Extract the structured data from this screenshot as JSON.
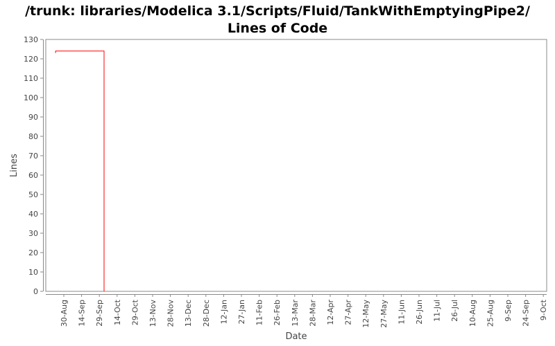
{
  "chart_data": {
    "type": "line",
    "title": "/trunk: libraries/Modelica 3.1/Scripts/Fluid/TankWithEmptyingPipe2/",
    "subtitle": "Lines of Code",
    "xlabel": "Date",
    "ylabel": "Lines",
    "ylim": [
      0,
      130
    ],
    "yticks": [
      0,
      10,
      20,
      30,
      40,
      50,
      60,
      70,
      80,
      90,
      100,
      110,
      120,
      130
    ],
    "xticks": [
      "30-Aug",
      "14-Sep",
      "29-Sep",
      "14-Oct",
      "29-Oct",
      "13-Nov",
      "28-Nov",
      "13-Dec",
      "28-Dec",
      "12-Jan",
      "27-Jan",
      "11-Feb",
      "26-Feb",
      "13-Mar",
      "28-Mar",
      "12-Apr",
      "27-Apr",
      "12-May",
      "27-May",
      "11-Jun",
      "26-Jun",
      "11-Jul",
      "26-Jul",
      "10-Aug",
      "25-Aug",
      "9-Sep",
      "24-Sep",
      "9-Oct"
    ],
    "grid": false,
    "line_color": "#ff0000",
    "series": [
      {
        "points": [
          {
            "date": "23-Aug",
            "lines": 123
          },
          {
            "date": "23-Aug",
            "lines": 124
          },
          {
            "date": "3-Oct",
            "lines": 124
          },
          {
            "date": "3-Oct",
            "lines": 0
          }
        ]
      }
    ]
  }
}
